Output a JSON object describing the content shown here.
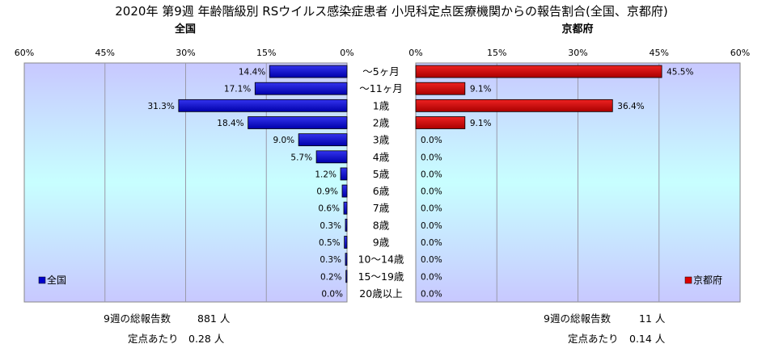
{
  "chart_data": {
    "type": "bar",
    "orientation": "horizontal",
    "title": "2020年 第9週 年齢階級別 RSウイルス感染症患者 小児科定点医療機関からの報告割合(全国、京都府)",
    "categories": [
      "～5ヶ月",
      "～11ヶ月",
      "1歳",
      "2歳",
      "3歳",
      "4歳",
      "5歳",
      "6歳",
      "7歳",
      "8歳",
      "9歳",
      "10～14歳",
      "15～19歳",
      "20歳以上"
    ],
    "xlim": [
      0,
      60
    ],
    "ticks": [
      0,
      15,
      30,
      45,
      60
    ],
    "tick_labels": [
      "0%",
      "15%",
      "30%",
      "45%",
      "60%"
    ],
    "grid": true,
    "series": [
      {
        "name": "全国",
        "panel_title": "全国",
        "color": "#0000cc",
        "values": [
          14.4,
          17.1,
          31.3,
          18.4,
          9.0,
          5.7,
          1.2,
          0.9,
          0.6,
          0.3,
          0.5,
          0.3,
          0.2,
          0.0
        ],
        "labels": [
          "14.4%",
          "17.1%",
          "31.3%",
          "18.4%",
          "9.0%",
          "5.7%",
          "1.2%",
          "0.9%",
          "0.6%",
          "0.3%",
          "0.5%",
          "0.3%",
          "0.2%",
          "0.0%"
        ],
        "legend_position": "bottom-left"
      },
      {
        "name": "京都府",
        "panel_title": "京都府",
        "color": "#dd0000",
        "values": [
          45.5,
          9.1,
          36.4,
          9.1,
          0.0,
          0.0,
          0.0,
          0.0,
          0.0,
          0.0,
          0.0,
          0.0,
          0.0,
          0.0
        ],
        "labels": [
          "45.5%",
          "9.1%",
          "36.4%",
          "9.1%",
          "0.0%",
          "0.0%",
          "0.0%",
          "0.0%",
          "0.0%",
          "0.0%",
          "0.0%",
          "0.0%",
          "0.0%",
          "0.0%"
        ],
        "legend_position": "bottom-right"
      }
    ]
  },
  "footer": {
    "national": {
      "total_label": "9週の総報告数",
      "total_value": "881 人",
      "per_site_label": "定点あたり",
      "per_site_value": "0.28 人"
    },
    "kyoto": {
      "total_label": "9週の総報告数",
      "total_value": "11 人",
      "per_site_label": "定点あたり",
      "per_site_value": "0.14 人"
    }
  }
}
